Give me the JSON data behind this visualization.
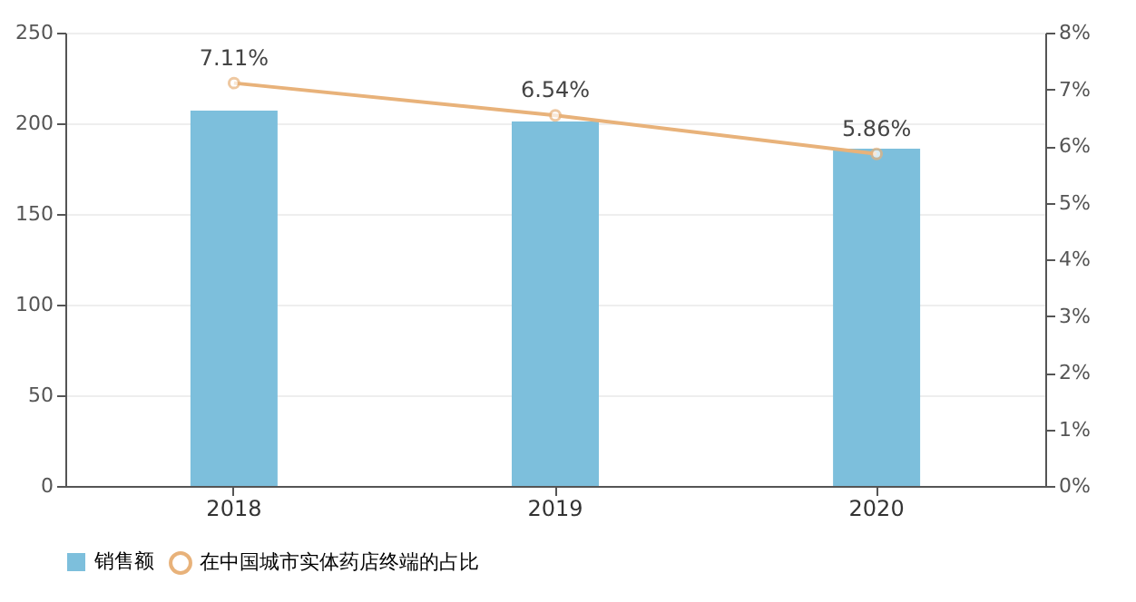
{
  "chart_data": {
    "type": "bar",
    "categories": [
      "2018",
      "2019",
      "2020"
    ],
    "series": [
      {
        "name": "销售额",
        "color": "#7dbfdc",
        "values": [
          207,
          201,
          186
        ]
      },
      {
        "name": "在中国城市实体药店终端的占比",
        "type": "line",
        "axis": "y2",
        "color": "#e8b27a",
        "values": [
          7.11,
          6.54,
          5.86
        ],
        "value_labels": [
          "7.11%",
          "6.54%",
          "5.86%"
        ]
      }
    ],
    "ylim": [
      0,
      250
    ],
    "yticks": [
      0,
      50,
      100,
      150,
      200,
      250
    ],
    "y2lim": [
      0,
      8
    ],
    "y2ticks": [
      {
        "value": 0,
        "label": "0%"
      },
      {
        "value": 1,
        "label": "1%"
      },
      {
        "value": 2,
        "label": "2%"
      },
      {
        "value": 3,
        "label": "3%"
      },
      {
        "value": 4,
        "label": "4%"
      },
      {
        "value": 5,
        "label": "5%"
      },
      {
        "value": 6,
        "label": "6%"
      },
      {
        "value": 7,
        "label": "7%"
      },
      {
        "value": 8,
        "label": "8%"
      }
    ],
    "grid": "y",
    "legend": "bottom",
    "marker": "circle",
    "line_style": "solid"
  }
}
